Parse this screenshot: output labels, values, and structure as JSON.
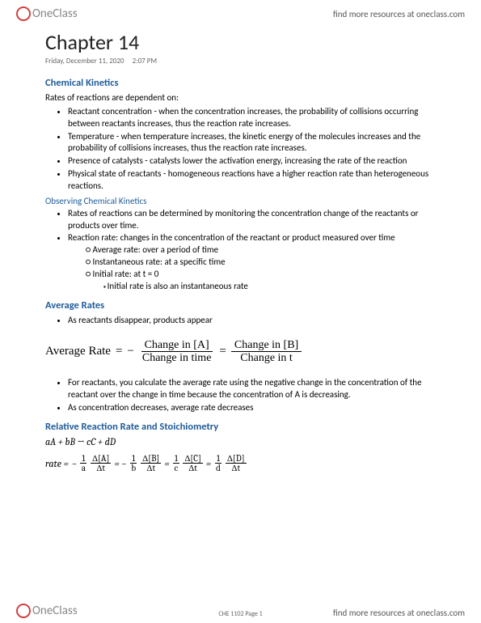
{
  "brand": {
    "name": "OneClass",
    "circle_color": "#d04040",
    "text_color": "#888888",
    "link_text": "find more resources at oneclass.com",
    "link_color": "#555555"
  },
  "page": {
    "title": "Chapter 14",
    "date": "Friday, December 11, 2020",
    "time": "2:07 PM",
    "footer_page": "CHE 1102 Page 1"
  },
  "sections": {
    "s1": {
      "heading": "Chemical Kinetics",
      "intro": "Rates of reactions are dependent on:",
      "items": [
        "Reactant concentration - when the concentration increases, the probability of collisions occurring between reactants increases, thus the reaction rate increases.",
        "Temperature - when temperature increases, the kinetic energy of the molecules increases and the probability of collisions increases, thus the reaction rate increases.",
        "Presence of catalysts - catalysts lower the activation energy, increasing the rate of the reaction",
        "Physical state of reactants - homogeneous reactions have a higher reaction rate than heterogeneous reactions."
      ]
    },
    "s1b": {
      "heading": "Observing Chemical Kinetics",
      "items": [
        "Rates of reactions can be determined by monitoring the concentration change of the reactants or products over time.",
        "Reaction rate: changes in the concentration of the reactant or product measured over time"
      ],
      "sub": [
        "Average rate: over a period of time",
        "Instantaneous rate: at a specific time",
        "Initial rate: at t = 0"
      ],
      "subsub": "Initial rate is also an instantaneous rate"
    },
    "s2": {
      "heading": "Average Rates",
      "items": [
        "As reactants disappear, products appear"
      ],
      "formula": {
        "label": "Average Rate",
        "eq": "=",
        "neg": "−",
        "f1_num": "Change in [A]",
        "f1_den": "Change in time",
        "f2_num": "Change in [B]",
        "f2_den": "Change in t"
      },
      "items2": [
        "For reactants, you calculate the average rate using the negative change in the concentration of the reactant over the change in time because the concentration of A is decreasing.",
        "As concentration decreases, average rate decreases"
      ]
    },
    "s3": {
      "heading": "Relative Reaction Rate and Stoichiometry",
      "equation": "aA + bB → cC + dD",
      "rate_label": "rate =",
      "neg": "−",
      "terms": {
        "a_coef": "a",
        "a_num": "Δ[A]",
        "a_den": "Δt",
        "b_coef": "b",
        "b_num": "Δ[B]",
        "b_den": "Δt",
        "c_coef": "c",
        "c_num": "Δ[C]",
        "c_den": "Δt",
        "d_coef": "d",
        "d_num": "Δ[D]",
        "d_den": "Δt",
        "one": "1"
      }
    }
  },
  "colors": {
    "heading_blue": "#1f5c99",
    "text": "#000000",
    "background": "#ffffff"
  }
}
